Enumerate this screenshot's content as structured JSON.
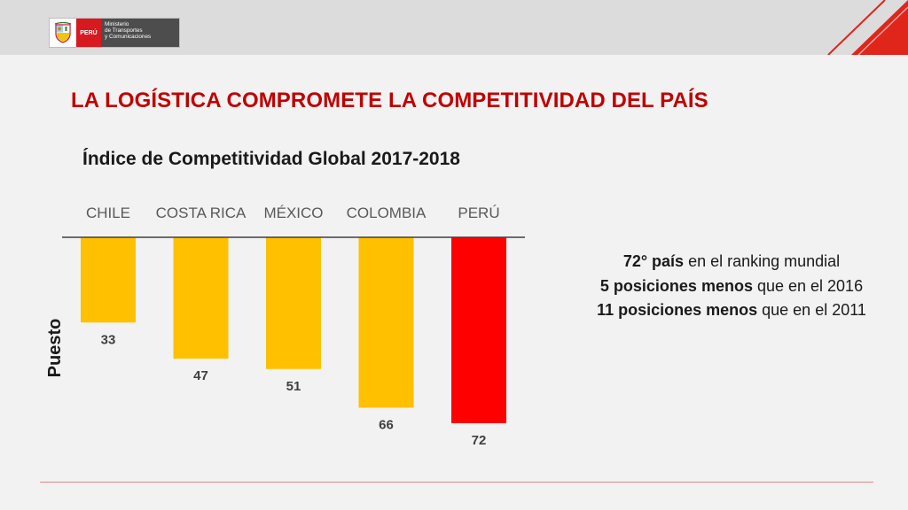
{
  "header": {
    "logo": {
      "country_label": "PERÚ",
      "ministry_lines": [
        "Ministerio",
        "de Transportes",
        "y Comunicaciones"
      ]
    },
    "accent_color": "#e0251b"
  },
  "slide": {
    "title": "LA LOGÍSTICA COMPROMETE LA COMPETITIVIDAD DEL PAÍS"
  },
  "chart_data": {
    "type": "bar",
    "title": "Índice de Competitividad Global 2017-2018",
    "xlabel": "",
    "ylabel": "Puesto",
    "categories": [
      "CHILE",
      "COSTA RICA",
      "MÉXICO",
      "COLOMBIA",
      "PERÚ"
    ],
    "values": [
      33,
      47,
      51,
      66,
      72
    ],
    "bar_colors": [
      "#ffc000",
      "#ffc000",
      "#ffc000",
      "#ffc000",
      "#ff0000"
    ],
    "orientation": "bars hang downward from top axis",
    "ylim": [
      0,
      72
    ],
    "grid": false,
    "legend": "none"
  },
  "info": {
    "line1_bold": "72° país",
    "line1_rest": " en el ranking mundial",
    "line2_bold": "5 posiciones menos",
    "line2_rest": " que en el 2016",
    "line3_bold": "11 posiciones menos",
    "line3_rest": " que en el 2011"
  }
}
